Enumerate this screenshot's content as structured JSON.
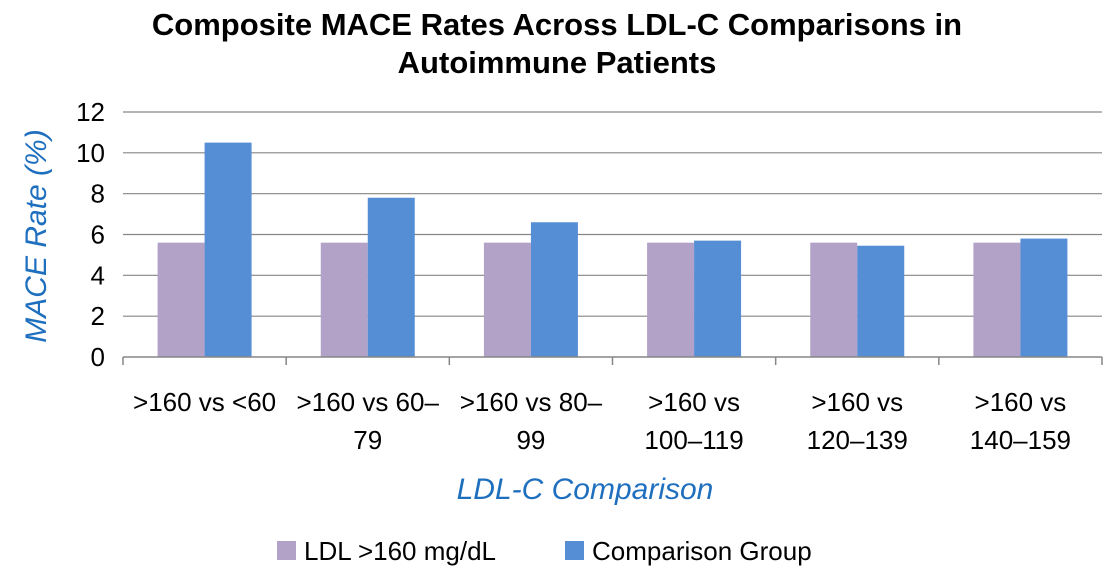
{
  "chart_data": {
    "type": "bar",
    "title_lines": [
      "Composite MACE Rates Across LDL-C Comparisons in",
      "Autoimmune Patients"
    ],
    "xlabel": "LDL-C Comparison",
    "ylabel": "MACE Rate (%)",
    "ylim": [
      0,
      12
    ],
    "yticks": [
      0,
      2,
      4,
      6,
      8,
      10,
      12
    ],
    "grid": true,
    "legend_position": "bottom",
    "categories": [
      [
        ">160 vs <60"
      ],
      [
        ">160 vs 60–",
        "79"
      ],
      [
        ">160 vs 80–",
        "99"
      ],
      [
        ">160 vs",
        "100–119"
      ],
      [
        ">160 vs",
        "120–139"
      ],
      [
        ">160 vs",
        "140–159"
      ]
    ],
    "series": [
      {
        "name": "LDL >160 mg/dL",
        "color": "#b3a2c7",
        "values": [
          5.6,
          5.6,
          5.6,
          5.6,
          5.6,
          5.6
        ]
      },
      {
        "name": "Comparison Group",
        "color": "#558ed5",
        "values": [
          10.5,
          7.8,
          6.6,
          5.7,
          5.45,
          5.8
        ]
      }
    ]
  }
}
